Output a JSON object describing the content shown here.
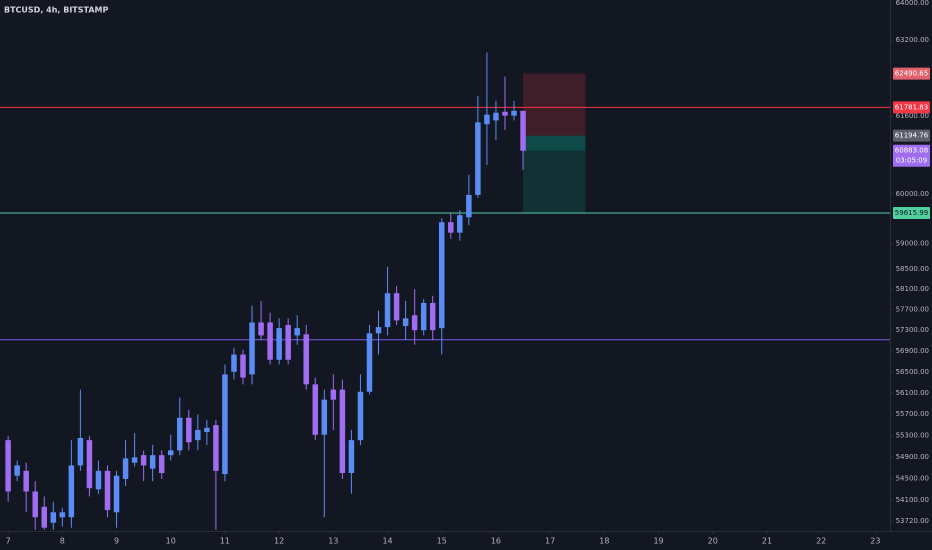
{
  "chart_data": {
    "type": "candlestick",
    "title": "BTCUSD, 4h, BITSTAMP",
    "x": [
      7,
      7.1667,
      7.3333,
      7.5,
      7.6667,
      7.8333,
      8,
      8.1667,
      8.3333,
      8.5,
      8.6667,
      8.8333,
      9,
      9.1667,
      9.3333,
      9.5,
      9.6667,
      9.8333,
      10,
      10.1667,
      10.3333,
      10.5,
      10.6667,
      10.8333,
      11,
      11.1667,
      11.3333,
      11.5,
      11.6667,
      11.8333,
      12,
      12.1667,
      12.3333,
      12.5,
      12.6667,
      12.8333,
      13,
      13.1667,
      13.3333,
      13.5,
      13.6667,
      13.8333,
      14,
      14.1667,
      14.3333,
      14.5,
      14.6667,
      14.8333,
      15,
      15.1667,
      15.3333,
      15.5,
      15.6667,
      15.8333,
      16,
      16.1667,
      16.3333,
      16.5
    ],
    "open": [
      55210,
      54550,
      54640,
      54260,
      53980,
      53690,
      53790,
      53790,
      54740,
      55210,
      54300,
      54640,
      53880,
      54490,
      54790,
      54930,
      54680,
      54930,
      54930,
      55020,
      55630,
      55210,
      55360,
      55490,
      54580,
      56500,
      56830,
      56450,
      57450,
      57450,
      56730,
      57400,
      57200,
      57220,
      56260,
      55310,
      56160,
      56160,
      54600,
      55210,
      56120,
      57240,
      57360,
      58020,
      57380,
      57590,
      57300,
      57830,
      57340,
      59430,
      59220,
      59530,
      59980,
      61430,
      61510,
      61690,
      61610,
      61710
    ],
    "high": [
      55290,
      54830,
      54790,
      54450,
      54170,
      54070,
      53960,
      55210,
      56160,
      55290,
      54830,
      54740,
      54640,
      55210,
      55340,
      55020,
      55120,
      55020,
      55310,
      56010,
      55780,
      55690,
      55590,
      55590,
      56640,
      56960,
      56920,
      57780,
      57870,
      57640,
      57530,
      57530,
      57590,
      57400,
      56390,
      56160,
      56450,
      56350,
      55400,
      56450,
      57400,
      57680,
      58540,
      58160,
      57870,
      58100,
      57910,
      57970,
      59510,
      59610,
      59670,
      60390,
      62020,
      62940,
      61920,
      62430,
      61920,
      61630
    ],
    "low": [
      54070,
      54450,
      53880,
      53560,
      53560,
      53560,
      53620,
      53600,
      54640,
      54170,
      54220,
      53790,
      53600,
      54360,
      54720,
      54450,
      54450,
      54490,
      54830,
      54930,
      55020,
      55020,
      55120,
      53560,
      54450,
      56350,
      56260,
      56260,
      57110,
      56640,
      56640,
      56640,
      57020,
      56160,
      55210,
      53790,
      55400,
      54490,
      54220,
      55120,
      56070,
      56830,
      57200,
      57400,
      57110,
      57020,
      57200,
      57110,
      56830,
      59100,
      59060,
      59370,
      59920,
      60590,
      61100,
      61310,
      61510,
      60490
    ],
    "close": [
      54260,
      54740,
      54260,
      53790,
      53600,
      53880,
      53880,
      54740,
      55250,
      54320,
      54640,
      53920,
      54550,
      54870,
      54890,
      54740,
      54930,
      54600,
      55020,
      55630,
      55170,
      55400,
      55440,
      54640,
      56450,
      56830,
      56390,
      57450,
      57200,
      56730,
      57340,
      56730,
      57340,
      56260,
      55310,
      55970,
      55970,
      54600,
      55210,
      56120,
      57240,
      57360,
      58020,
      57490,
      57530,
      57300,
      57830,
      57300,
      59430,
      59220,
      59570,
      59980,
      61470,
      61630,
      61670,
      61610,
      61710,
      60883.08
    ],
    "up_color": "#5b8cf5",
    "down_color": "#9f6cf2",
    "xlim": [
      6.85,
      23.27
    ],
    "xticks": [
      7,
      8,
      9,
      10,
      11,
      12,
      13,
      14,
      15,
      16,
      17,
      18,
      19,
      20,
      21,
      22,
      23
    ],
    "ylim": [
      53540,
      64065
    ],
    "log_scale": true,
    "yticks": [
      {
        "value": 64000,
        "label": "64000.00"
      },
      {
        "value": 63200,
        "label": "63200.00"
      },
      {
        "value": 61600,
        "label": "61600.00"
      },
      {
        "value": 60000,
        "label": "60000.00"
      },
      {
        "value": 59000,
        "label": "59000.00"
      },
      {
        "value": 58500,
        "label": "58500.00"
      },
      {
        "value": 58100,
        "label": "58100.00"
      },
      {
        "value": 57700,
        "label": "57700.00"
      },
      {
        "value": 57300,
        "label": "57300.00"
      },
      {
        "value": 56900,
        "label": "56900.00"
      },
      {
        "value": 56500,
        "label": "56500.00"
      },
      {
        "value": 56100,
        "label": "56100.00"
      },
      {
        "value": 55700,
        "label": "55700.00"
      },
      {
        "value": 55300,
        "label": "55300.00"
      },
      {
        "value": 54900,
        "label": "54900.00"
      },
      {
        "value": 54500,
        "label": "54500.00"
      },
      {
        "value": 54100,
        "label": "54100.00"
      },
      {
        "value": 53720,
        "label": "53720.00"
      }
    ],
    "horizontal_lines": [
      {
        "value": 61781.83,
        "color": "#f23645"
      },
      {
        "value": 59615.99,
        "color": "#4fd1a0"
      },
      {
        "value": 57116,
        "color": "#7b5cf0"
      }
    ],
    "position": {
      "x_start": 16.5,
      "x_end": 17.65,
      "stop": 62490.65,
      "entry": 61194.76,
      "target": 59615.99
    },
    "last_price": {
      "countdown": "03:05:09"
    }
  }
}
